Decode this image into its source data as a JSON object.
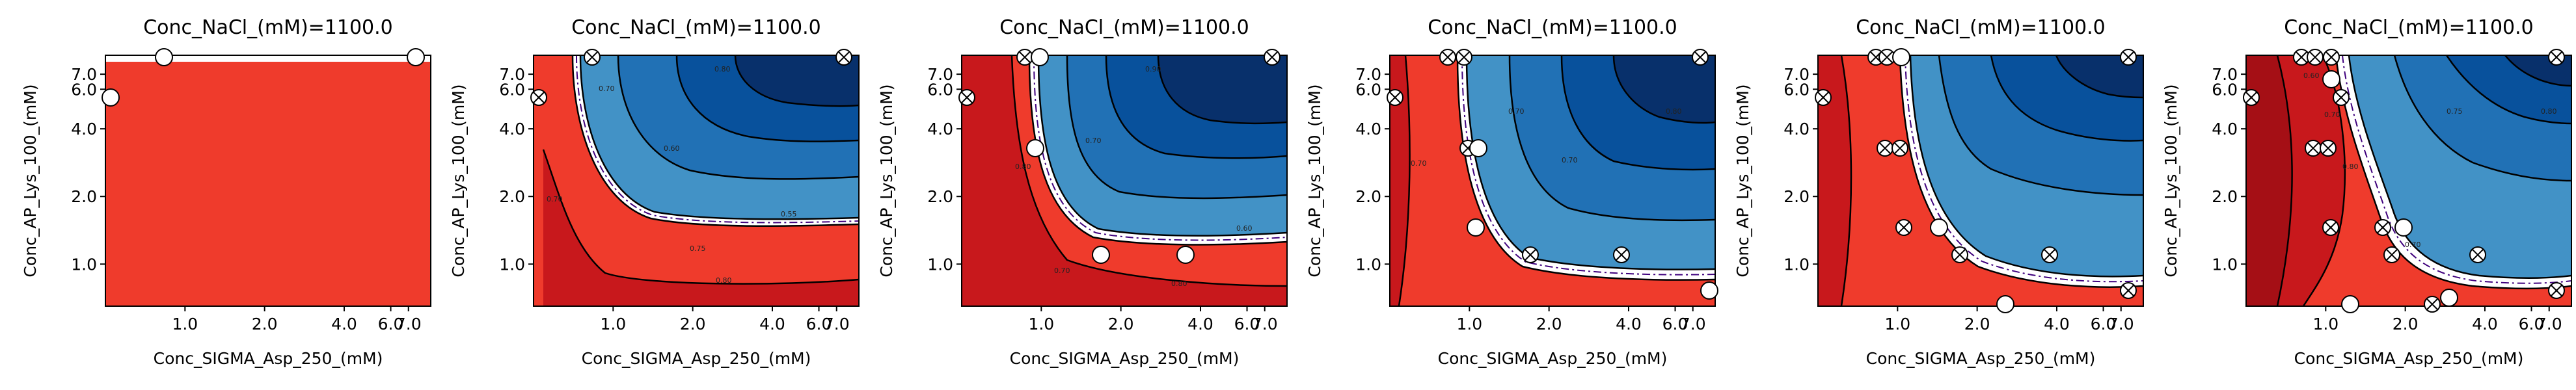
{
  "colors": {
    "fail_dark": "#c8181c",
    "fail": "#ef3b2c",
    "pass_light": "#4292c6",
    "pass_mid": "#2171b5",
    "pass_dark": "#08519c",
    "pass_darkest": "#08306b",
    "boundary": "#ffffff",
    "probability_line": "#3f007d",
    "point_fill": "#ffffff",
    "point_edge": "#000000"
  },
  "chart_data": [
    {
      "type": "contour",
      "title": "Conc_NaCl_(mM)=1100.0",
      "xlabel": "Conc_SIGMA_Asp_250_(mM)",
      "ylabel": "Conc_AP_Lys_100_(mM)",
      "xscale": "log",
      "yscale": "log",
      "xlim": [
        0.5,
        8.5
      ],
      "ylim": [
        0.65,
        8.5
      ],
      "xticks": [
        "1.0",
        "2.0",
        "4.0",
        "6.0",
        "7.0"
      ],
      "yticks": [
        "1.0",
        "2.0",
        "4.0",
        "6.0",
        "7.0"
      ],
      "fill": "uniform fail region",
      "points": [
        {
          "x": 0.55,
          "y": 6.3,
          "marker": "open"
        },
        {
          "x": 1.55,
          "y": 7.7,
          "marker": "open"
        },
        {
          "x": 8.1,
          "y": 7.7,
          "marker": "open"
        }
      ]
    },
    {
      "type": "contour",
      "title": "Conc_NaCl_(mM)=1100.0",
      "xlabel": "Conc_SIGMA_Asp_250_(mM)",
      "ylabel": "Conc_AP_Lys_100_(mM)",
      "xscale": "log",
      "yscale": "log",
      "xlim": [
        0.5,
        8.5
      ],
      "ylim": [
        0.65,
        8.5
      ],
      "xticks": [
        "1.0",
        "2.0",
        "4.0",
        "6.0",
        "7.0"
      ],
      "yticks": [
        "1.0",
        "2.0",
        "4.0",
        "6.0",
        "7.0"
      ],
      "contour_labels": [
        "0.80",
        "0.70",
        "0.60",
        "0.55",
        "0.70",
        "0.80",
        "0.75"
      ],
      "points": [
        {
          "x": 0.55,
          "y": 6.3,
          "marker": "x"
        },
        {
          "x": 1.7,
          "y": 7.7,
          "marker": "x"
        },
        {
          "x": 8.1,
          "y": 7.7,
          "marker": "x"
        }
      ]
    },
    {
      "type": "contour",
      "title": "Conc_NaCl_(mM)=1100.0",
      "xlabel": "Conc_SIGMA_Asp_250_(mM)",
      "ylabel": "Conc_AP_Lys_100_(mM)",
      "xscale": "log",
      "yscale": "log",
      "xlim": [
        0.5,
        8.5
      ],
      "ylim": [
        0.65,
        8.5
      ],
      "xticks": [
        "1.0",
        "2.0",
        "4.0",
        "6.0",
        "7.0"
      ],
      "yticks": [
        "1.0",
        "2.0",
        "4.0",
        "6.0",
        "7.0"
      ],
      "contour_labels": [
        "0.80",
        "0.90",
        "0.70",
        "0.60",
        "0.70",
        "0.80"
      ],
      "points": [
        {
          "x": 0.55,
          "y": 6.3,
          "marker": "x"
        },
        {
          "x": 1.8,
          "y": 7.7,
          "marker": "x"
        },
        {
          "x": 2.05,
          "y": 7.7,
          "marker": "open"
        },
        {
          "x": 1.95,
          "y": 4.6,
          "marker": "open"
        },
        {
          "x": 3.3,
          "y": 1.55,
          "marker": "open"
        },
        {
          "x": 5.4,
          "y": 1.55,
          "marker": "open"
        },
        {
          "x": 8.1,
          "y": 7.7,
          "marker": "x"
        }
      ]
    },
    {
      "type": "contour",
      "title": "Conc_NaCl_(mM)=1100.0",
      "xlabel": "Conc_SIGMA_Asp_250_(mM)",
      "ylabel": "Conc_AP_Lys_100_(mM)",
      "xscale": "log",
      "yscale": "log",
      "xlim": [
        0.5,
        8.5
      ],
      "ylim": [
        0.65,
        8.5
      ],
      "xticks": [
        "1.0",
        "2.0",
        "4.0",
        "6.0",
        "7.0"
      ],
      "yticks": [
        "1.0",
        "2.0",
        "4.0",
        "6.0",
        "7.0"
      ],
      "contour_labels": [
        "0.70",
        "0.70",
        "0.70",
        "0.80"
      ],
      "points": [
        {
          "x": 0.55,
          "y": 6.3,
          "marker": "x"
        },
        {
          "x": 1.7,
          "y": 7.7,
          "marker": "x"
        },
        {
          "x": 2.0,
          "y": 7.7,
          "marker": "x"
        },
        {
          "x": 2.1,
          "y": 4.6,
          "marker": "x"
        },
        {
          "x": 2.4,
          "y": 4.6,
          "marker": "open"
        },
        {
          "x": 2.3,
          "y": 2.3,
          "marker": "open"
        },
        {
          "x": 3.4,
          "y": 1.55,
          "marker": "x"
        },
        {
          "x": 5.7,
          "y": 1.55,
          "marker": "x"
        },
        {
          "x": 8.1,
          "y": 7.7,
          "marker": "x"
        },
        {
          "x": 8.1,
          "y": 0.75,
          "marker": "open"
        }
      ]
    },
    {
      "type": "contour",
      "title": "Conc_NaCl_(mM)=1100.0",
      "xlabel": "Conc_SIGMA_Asp_250_(mM)",
      "ylabel": "Conc_AP_Lys_100_(mM)",
      "xscale": "log",
      "yscale": "log",
      "xlim": [
        0.5,
        8.5
      ],
      "ylim": [
        0.65,
        8.5
      ],
      "xticks": [
        "1.0",
        "2.0",
        "4.0",
        "6.0",
        "7.0"
      ],
      "yticks": [
        "1.0",
        "2.0",
        "4.0",
        "6.0",
        "7.0"
      ],
      "points": [
        {
          "x": 0.55,
          "y": 6.3,
          "marker": "x"
        },
        {
          "x": 1.7,
          "y": 7.7,
          "marker": "x"
        },
        {
          "x": 1.9,
          "y": 7.7,
          "marker": "x"
        },
        {
          "x": 2.15,
          "y": 7.7,
          "marker": "open"
        },
        {
          "x": 1.85,
          "y": 4.6,
          "marker": "x"
        },
        {
          "x": 2.15,
          "y": 4.6,
          "marker": "x"
        },
        {
          "x": 2.2,
          "y": 2.3,
          "marker": "x"
        },
        {
          "x": 3.0,
          "y": 2.3,
          "marker": "open"
        },
        {
          "x": 3.5,
          "y": 1.55,
          "marker": "x"
        },
        {
          "x": 4.5,
          "y": 0.65,
          "marker": "open"
        },
        {
          "x": 5.6,
          "y": 1.55,
          "marker": "x"
        },
        {
          "x": 8.1,
          "y": 7.7,
          "marker": "x"
        },
        {
          "x": 8.1,
          "y": 0.75,
          "marker": "x"
        }
      ]
    },
    {
      "type": "contour",
      "title": "Conc_NaCl_(mM)=1100.0",
      "xlabel": "Conc_SIGMA_Asp_250_(mM)",
      "ylabel": "Conc_AP_Lys_100_(mM)",
      "xscale": "log",
      "yscale": "log",
      "xlim": [
        0.5,
        8.5
      ],
      "ylim": [
        0.65,
        8.5
      ],
      "xticks": [
        "1.0",
        "2.0",
        "4.0",
        "6.0",
        "7.0"
      ],
      "yticks": [
        "1.0",
        "2.0",
        "4.0",
        "6.0",
        "7.0"
      ],
      "contour_labels": [
        "0.60",
        "0.70",
        "0.80",
        "0.70",
        "0.75",
        "0.80"
      ],
      "points": [
        {
          "x": 0.55,
          "y": 6.3,
          "marker": "x"
        },
        {
          "x": 1.5,
          "y": 7.7,
          "marker": "x"
        },
        {
          "x": 1.85,
          "y": 7.7,
          "marker": "x"
        },
        {
          "x": 2.25,
          "y": 7.7,
          "marker": "x"
        },
        {
          "x": 2.2,
          "y": 6.9,
          "marker": "open"
        },
        {
          "x": 2.5,
          "y": 6.2,
          "marker": "x"
        },
        {
          "x": 1.8,
          "y": 4.6,
          "marker": "x"
        },
        {
          "x": 2.15,
          "y": 4.6,
          "marker": "x"
        },
        {
          "x": 2.25,
          "y": 2.3,
          "marker": "x"
        },
        {
          "x": 3.3,
          "y": 2.3,
          "marker": "x"
        },
        {
          "x": 3.8,
          "y": 2.3,
          "marker": "open"
        },
        {
          "x": 3.55,
          "y": 1.55,
          "marker": "x"
        },
        {
          "x": 5.6,
          "y": 1.55,
          "marker": "x"
        },
        {
          "x": 3.0,
          "y": 0.65,
          "marker": "open"
        },
        {
          "x": 4.7,
          "y": 0.65,
          "marker": "x"
        },
        {
          "x": 5.3,
          "y": 0.7,
          "marker": "open"
        },
        {
          "x": 8.1,
          "y": 7.7,
          "marker": "x"
        },
        {
          "x": 8.1,
          "y": 0.75,
          "marker": "x"
        }
      ]
    }
  ]
}
